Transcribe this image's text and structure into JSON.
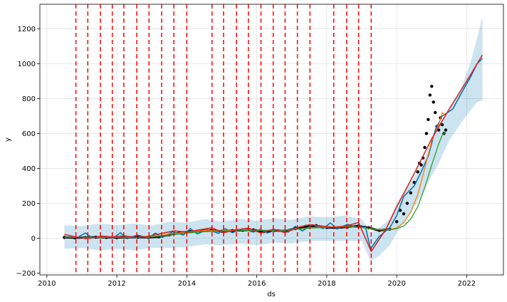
{
  "chart_data": {
    "type": "line",
    "title": "",
    "xlabel": "ds",
    "ylabel": "y",
    "xlim": [
      2009.8,
      2023.05
    ],
    "ylim": [
      -210,
      1340
    ],
    "x_ticks": [
      2010,
      2012,
      2014,
      2016,
      2018,
      2020,
      2022
    ],
    "y_ticks": [
      -200,
      0,
      200,
      400,
      600,
      800,
      1000,
      1200
    ],
    "x_tick_labels": [
      "2010",
      "2012",
      "2014",
      "2016",
      "2018",
      "2020",
      "2022"
    ],
    "y_tick_labels": [
      "−200",
      "0",
      "200",
      "400",
      "600",
      "800",
      "1000",
      "1200"
    ],
    "grid": true,
    "colors": {
      "observed": "#000000",
      "forecast": "#0072B2",
      "uncertainty": "#0072B2",
      "orange_series": "#ff7f0e",
      "green_series": "#2ca02c",
      "red_series": "#d62728",
      "changepoints": "#ff0000"
    },
    "changepoints": [
      2010.83,
      2011.17,
      2011.53,
      2011.87,
      2012.2,
      2012.57,
      2012.92,
      2013.28,
      2013.63,
      2014.0,
      2014.72,
      2015.05,
      2015.42,
      2015.76,
      2016.12,
      2016.47,
      2016.81,
      2017.16,
      2017.52,
      2018.2,
      2018.57,
      2018.91,
      2019.27
    ],
    "series": [
      {
        "role": "observed",
        "x": [
          2010.5,
          2010.8,
          2011.1,
          2011.4,
          2011.7,
          2012.0,
          2012.3,
          2012.6,
          2012.9,
          2013.2,
          2013.5,
          2013.8,
          2014.1,
          2014.4,
          2014.7,
          2015.0,
          2015.3,
          2015.6,
          2015.9,
          2016.2,
          2016.5,
          2016.8,
          2017.1,
          2017.4,
          2017.7,
          2018.0,
          2018.3,
          2018.6,
          2018.9,
          2019.2,
          2019.5,
          2019.8,
          2020.0,
          2020.1,
          2020.2,
          2020.3,
          2020.4,
          2020.5,
          2020.6,
          2020.65,
          2020.7,
          2020.75,
          2020.8,
          2020.85,
          2020.9,
          2020.95,
          2021.0,
          2021.05,
          2021.1,
          2021.15,
          2021.2,
          2021.25,
          2021.3,
          2021.35,
          2021.4
        ],
        "y": [
          5,
          3,
          4,
          6,
          5,
          4,
          5,
          6,
          5,
          8,
          20,
          32,
          38,
          42,
          45,
          40,
          44,
          46,
          48,
          38,
          45,
          42,
          55,
          68,
          72,
          62,
          60,
          65,
          70,
          60,
          45,
          52,
          95,
          160,
          140,
          200,
          260,
          320,
          380,
          430,
          420,
          460,
          520,
          600,
          680,
          820,
          870,
          780,
          720,
          640,
          620,
          690,
          650,
          600,
          620
        ]
      },
      {
        "role": "forecast",
        "x": [
          2010.5,
          2010.9,
          2011.1,
          2011.3,
          2011.6,
          2011.9,
          2012.1,
          2012.3,
          2012.6,
          2012.9,
          2013.1,
          2013.3,
          2013.6,
          2013.9,
          2014.1,
          2014.3,
          2014.6,
          2014.9,
          2015.1,
          2015.3,
          2015.6,
          2015.9,
          2016.1,
          2016.3,
          2016.6,
          2016.9,
          2017.1,
          2017.3,
          2017.6,
          2017.9,
          2018.1,
          2018.3,
          2018.6,
          2018.9,
          2019.1,
          2019.25,
          2019.5,
          2019.8,
          2020.0,
          2020.2,
          2020.5,
          2020.7,
          2020.9,
          2021.1,
          2021.3,
          2021.6,
          2021.9,
          2022.1,
          2022.3,
          2022.45
        ],
        "y": [
          5,
          8,
          30,
          2,
          12,
          2,
          32,
          2,
          18,
          2,
          30,
          5,
          38,
          18,
          55,
          25,
          50,
          28,
          55,
          32,
          55,
          35,
          52,
          30,
          50,
          35,
          68,
          42,
          78,
          55,
          88,
          55,
          80,
          60,
          70,
          -60,
          10,
          60,
          130,
          240,
          300,
          380,
          470,
          620,
          700,
          740,
          850,
          920,
          1000,
          1030
        ]
      },
      {
        "role": "uncertainty_upper",
        "x": [
          2010.5,
          2011.0,
          2011.5,
          2012.0,
          2012.5,
          2013.0,
          2013.5,
          2014.0,
          2014.5,
          2015.0,
          2015.5,
          2016.0,
          2016.5,
          2017.0,
          2017.5,
          2018.0,
          2018.5,
          2019.0,
          2019.25,
          2019.5,
          2019.8,
          2020.0,
          2020.3,
          2020.6,
          2020.9,
          2021.2,
          2021.5,
          2021.8,
          2022.1,
          2022.3,
          2022.45
        ],
        "y": [
          75,
          70,
          85,
          75,
          85,
          72,
          95,
          88,
          110,
          95,
          112,
          100,
          115,
          105,
          125,
          120,
          130,
          110,
          30,
          60,
          110,
          200,
          290,
          380,
          500,
          650,
          740,
          840,
          1000,
          1150,
          1270
        ]
      },
      {
        "role": "uncertainty_lower",
        "x": [
          2010.5,
          2011.0,
          2011.5,
          2012.0,
          2012.5,
          2013.0,
          2013.5,
          2014.0,
          2014.5,
          2015.0,
          2015.5,
          2016.0,
          2016.5,
          2017.0,
          2017.5,
          2018.0,
          2018.5,
          2019.0,
          2019.25,
          2019.5,
          2019.8,
          2020.0,
          2020.3,
          2020.6,
          2020.9,
          2021.2,
          2021.5,
          2021.8,
          2022.1,
          2022.3,
          2022.45
        ],
        "y": [
          -60,
          -55,
          -70,
          -60,
          -70,
          -55,
          -55,
          -50,
          -35,
          -40,
          -30,
          -40,
          -25,
          -30,
          -15,
          -15,
          -15,
          -15,
          -130,
          -100,
          -40,
          30,
          120,
          210,
          320,
          430,
          560,
          650,
          730,
          780,
          790
        ]
      },
      {
        "role": "orange_series",
        "x": [
          2010.5,
          2011.0,
          2011.5,
          2012.0,
          2012.5,
          2013.0,
          2013.5,
          2014.0,
          2014.5,
          2015.0,
          2015.5,
          2016.0,
          2016.5,
          2017.0,
          2017.5,
          2018.0,
          2018.5,
          2019.0,
          2019.5,
          2019.8,
          2020.0,
          2020.2,
          2020.4,
          2020.6,
          2020.8,
          2021.0,
          2021.2,
          2021.3,
          2021.4
        ],
        "y": [
          5,
          4,
          5,
          6,
          5,
          10,
          25,
          35,
          45,
          42,
          48,
          46,
          45,
          48,
          60,
          65,
          68,
          62,
          48,
          50,
          60,
          90,
          150,
          250,
          400,
          560,
          650,
          720,
          700
        ]
      },
      {
        "role": "green_series",
        "x": [
          2010.5,
          2011.0,
          2011.5,
          2012.0,
          2012.5,
          2013.0,
          2013.5,
          2014.0,
          2014.5,
          2015.0,
          2015.5,
          2016.0,
          2016.5,
          2017.0,
          2017.5,
          2018.0,
          2018.5,
          2019.0,
          2019.5,
          2019.8,
          2020.0,
          2020.2,
          2020.4,
          2020.6,
          2020.8,
          2021.0,
          2021.2,
          2021.3,
          2021.4
        ],
        "y": [
          5,
          5,
          5,
          5,
          5,
          8,
          18,
          30,
          38,
          40,
          45,
          45,
          45,
          50,
          58,
          62,
          65,
          62,
          50,
          48,
          55,
          70,
          110,
          180,
          290,
          420,
          540,
          590,
          610
        ]
      },
      {
        "role": "red_series",
        "x": [
          2010.5,
          2010.83,
          2011.17,
          2011.53,
          2011.87,
          2012.2,
          2012.57,
          2012.92,
          2013.28,
          2013.63,
          2014.0,
          2014.72,
          2015.05,
          2015.42,
          2015.76,
          2016.12,
          2016.47,
          2016.81,
          2017.16,
          2017.52,
          2018.2,
          2018.57,
          2018.91,
          2019.27,
          2019.7,
          2020.0,
          2020.5,
          2021.0,
          2021.5,
          2022.0,
          2022.45
        ],
        "y": [
          22,
          8,
          -2,
          12,
          8,
          14,
          4,
          12,
          28,
          42,
          36,
          60,
          32,
          48,
          58,
          30,
          52,
          32,
          62,
          78,
          62,
          72,
          90,
          -75,
          55,
          180,
          370,
          570,
          740,
          900,
          1050
        ]
      }
    ]
  }
}
